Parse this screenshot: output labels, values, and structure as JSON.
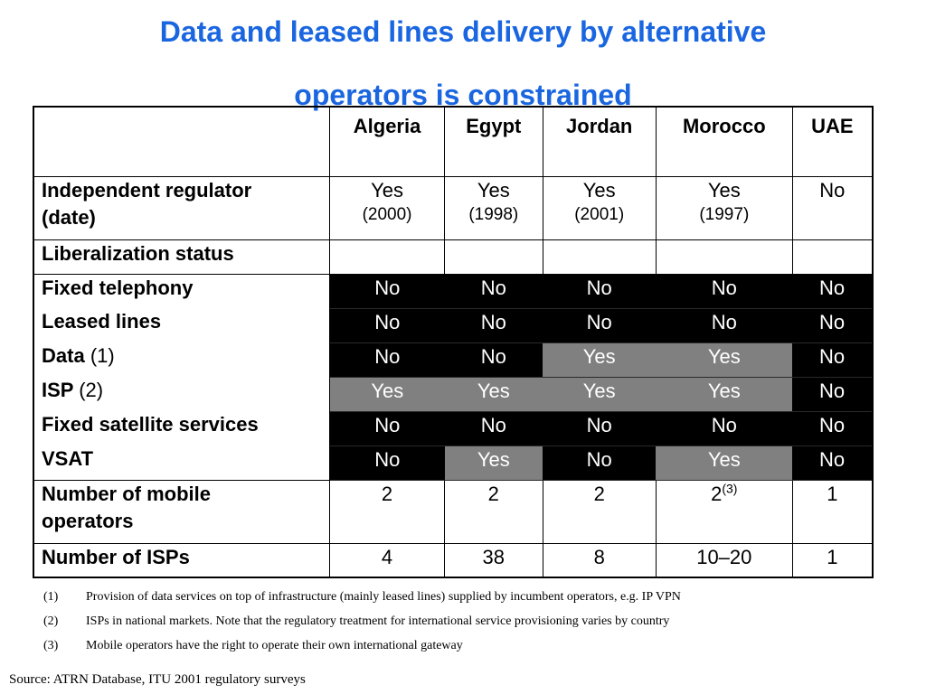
{
  "title": {
    "line1": "Data and leased lines delivery by alternative",
    "line2": "operators is constrained"
  },
  "table": {
    "columns": [
      "Algeria",
      "Egypt",
      "Jordan",
      "Morocco",
      "UAE"
    ],
    "regulator": {
      "label_line1": "Independent regulator",
      "label_line2": "(date)",
      "values": [
        "Yes",
        "Yes",
        "Yes",
        "Yes",
        "No"
      ],
      "dates": [
        "(2000)",
        "(1998)",
        "(2001)",
        "(1997)",
        ""
      ]
    },
    "liberalization_label": "Liberalization status",
    "liberalization_rows": [
      {
        "label": "Fixed telephony",
        "note": "",
        "values": [
          "No",
          "No",
          "No",
          "No",
          "No"
        ],
        "shade": [
          "black",
          "black",
          "black",
          "black",
          "black"
        ]
      },
      {
        "label": "Leased lines",
        "note": "",
        "values": [
          "No",
          "No",
          "No",
          "No",
          "No"
        ],
        "shade": [
          "black",
          "black",
          "black",
          "black",
          "black"
        ]
      },
      {
        "label": "Data",
        "note": "(1)",
        "values": [
          "No",
          "No",
          "Yes",
          "Yes",
          "No"
        ],
        "shade": [
          "black",
          "black",
          "gray",
          "gray",
          "black"
        ]
      },
      {
        "label": "ISP",
        "note": "(2)",
        "values": [
          "Yes",
          "Yes",
          "Yes",
          "Yes",
          "No"
        ],
        "shade": [
          "gray",
          "gray",
          "gray",
          "gray",
          "black"
        ]
      },
      {
        "label": "Fixed satellite services",
        "note": "",
        "values": [
          "No",
          "No",
          "No",
          "No",
          "No"
        ],
        "shade": [
          "black",
          "black",
          "black",
          "black",
          "black"
        ]
      },
      {
        "label": "VSAT",
        "note": "",
        "values": [
          "No",
          "Yes",
          "No",
          "Yes",
          "No"
        ],
        "shade": [
          "black",
          "gray",
          "black",
          "gray",
          "black"
        ]
      }
    ],
    "mobile": {
      "label_line1": "Number of mobile",
      "label_line2": "operators",
      "values": [
        "2",
        "2",
        "2",
        "2",
        "1"
      ],
      "morocco_sup": "(3)"
    },
    "isps": {
      "label": "Number of ISPs",
      "values": [
        "4",
        "38",
        "8",
        "10–20",
        "1"
      ]
    }
  },
  "colors": {
    "title": "#1a66e0",
    "no_cell": "#000000",
    "yes_cell": "#808080"
  },
  "footnotes": [
    {
      "num": "(1)",
      "text": "Provision of data services on top of infrastructure (mainly leased lines) supplied by incumbent operators, e.g. IP VPN"
    },
    {
      "num": "(2)",
      "text": "ISPs in national markets. Note that the regulatory treatment for international service provisioning varies by country"
    },
    {
      "num": "(3)",
      "text": "Mobile operators have the right to operate their own international gateway"
    }
  ],
  "source": "Source: ATRN Database, ITU 2001 regulatory surveys"
}
